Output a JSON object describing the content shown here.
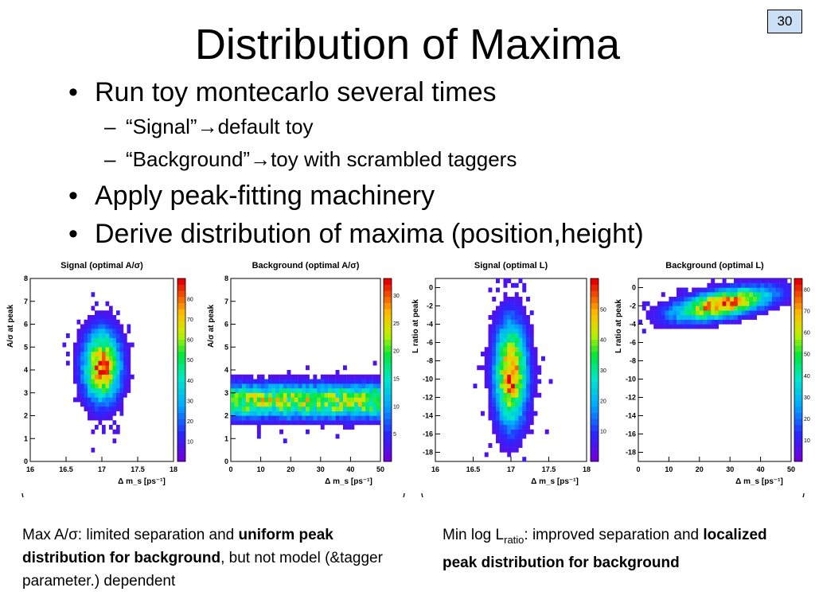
{
  "page_number": "30",
  "title": "Distribution of Maxima",
  "bullets": [
    {
      "level": 1,
      "text": "Run toy montecarlo several times"
    },
    {
      "level": 2,
      "text": "“Signal”→default toy"
    },
    {
      "level": 2,
      "text": "“Background”→toy with scrambled taggers"
    },
    {
      "level": 1,
      "text": "Apply peak-fitting machinery"
    },
    {
      "level": 1,
      "text": "Derive distribution of maxima (position,height)"
    }
  ],
  "bullet_glyphs": {
    "level1": "•",
    "level2": "–"
  },
  "chart_data": [
    {
      "type": "heatmap",
      "title": "Signal (optimal A/σ)",
      "xlabel": "Δ m_s [ps⁻¹]",
      "ylabel": "A/σ at peak",
      "xlim": [
        16,
        18
      ],
      "ylim": [
        0,
        8
      ],
      "xticks": [
        "16",
        "16.5",
        "17",
        "17.5",
        "18"
      ],
      "yticks": [
        "0",
        "1",
        "2",
        "3",
        "4",
        "5",
        "6",
        "7",
        "8"
      ],
      "colorbar": {
        "range": [
          0,
          90
        ],
        "ticks": [
          "10",
          "20",
          "30",
          "40",
          "50",
          "60",
          "70",
          "80"
        ]
      },
      "peak": {
        "x": 17.0,
        "y": 4.2,
        "max_count": 85
      }
    },
    {
      "type": "heatmap",
      "title": "Background (optimal A/σ)",
      "xlabel": "Δ m_s [ps⁻¹]",
      "ylabel": "A/σ at peak",
      "xlim": [
        0,
        50
      ],
      "ylim": [
        0,
        8
      ],
      "xticks": [
        "0",
        "10",
        "20",
        "30",
        "40",
        "50"
      ],
      "yticks": [
        "0",
        "1",
        "2",
        "3",
        "4",
        "5",
        "6",
        "7",
        "8"
      ],
      "colorbar": {
        "range": [
          0,
          33
        ],
        "ticks": [
          "5",
          "10",
          "15",
          "20",
          "25",
          "30"
        ]
      },
      "peak": {
        "x": "uniform",
        "y": 2.7,
        "max_count": 32
      }
    },
    {
      "type": "heatmap",
      "title": "Signal (optimal L)",
      "xlabel": "Δ m_s [ps⁻¹]",
      "ylabel": "L ratio at peak",
      "xlim": [
        16,
        18
      ],
      "ylim": [
        -19,
        1
      ],
      "xticks": [
        "16",
        "16.5",
        "17",
        "17.5",
        "18"
      ],
      "yticks": [
        "0",
        "-2",
        "-4",
        "-6",
        "-8",
        "-10",
        "-12",
        "-14",
        "-16",
        "-18"
      ],
      "colorbar": {
        "range": [
          0,
          60
        ],
        "ticks": [
          "10",
          "20",
          "30",
          "40",
          "50"
        ]
      },
      "peak": {
        "x": 17.0,
        "y": -8.5,
        "max_count": 58
      }
    },
    {
      "type": "heatmap",
      "title": "Background (optimal L)",
      "xlabel": "Δ m_s [ps⁻¹]",
      "ylabel": "L ratio at peak",
      "xlim": [
        0,
        50
      ],
      "ylim": [
        -19,
        1
      ],
      "xticks": [
        "0",
        "10",
        "20",
        "30",
        "40",
        "50"
      ],
      "yticks": [
        "0",
        "-2",
        "-4",
        "-6",
        "-8",
        "-10",
        "-12",
        "-14",
        "-16",
        "-18"
      ],
      "colorbar": {
        "range": [
          0,
          85
        ],
        "ticks": [
          "10",
          "20",
          "30",
          "40",
          "50",
          "60",
          "70",
          "80"
        ]
      },
      "peak": {
        "x": 30,
        "y": -2.0,
        "max_count": 82
      }
    }
  ],
  "captions": {
    "left": {
      "prefix": "Max A/σ: limited separation and ",
      "bold": "uniform peak distribution for background",
      "suffix": ", but not model (&tagger parameter.) dependent"
    },
    "right": {
      "prefix": "Min log L",
      "subscript": "ratio",
      "middle": ": improved separation and ",
      "bold": "localized peak distribution for background"
    }
  }
}
